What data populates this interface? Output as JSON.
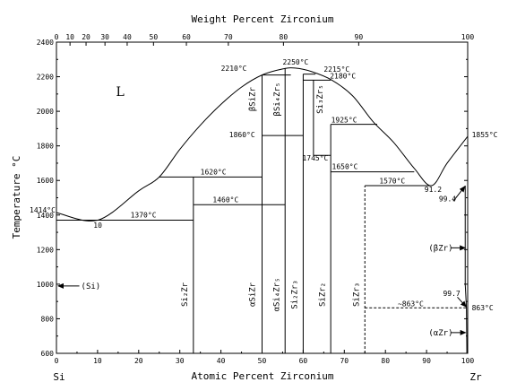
{
  "chart_data": {
    "type": "phase-diagram",
    "top_title": "Weight Percent Zirconium",
    "xlabel": "Atomic Percent Zirconium",
    "ylabel": "Temperature °C",
    "xlim": [
      0,
      100
    ],
    "ylim": [
      600,
      2400
    ],
    "x_ticks": [
      0,
      10,
      20,
      30,
      40,
      50,
      60,
      70,
      80,
      90,
      100
    ],
    "y_ticks": [
      600,
      800,
      1000,
      1200,
      1400,
      1600,
      1800,
      2000,
      2200,
      2400
    ],
    "top_ticks": [
      {
        "label": "0",
        "at": 0
      },
      {
        "label": "10",
        "at": 3.3
      },
      {
        "label": "20",
        "at": 7.2
      },
      {
        "label": "30",
        "at": 11.8
      },
      {
        "label": "40",
        "at": 17.2
      },
      {
        "label": "50",
        "at": 23.6
      },
      {
        "label": "60",
        "at": 31.6
      },
      {
        "label": "70",
        "at": 41.8
      },
      {
        "label": "80",
        "at": 55.2
      },
      {
        "label": "90",
        "at": 73.5
      },
      {
        "label": "100",
        "at": 100
      }
    ],
    "endpoints": {
      "left": "Si",
      "right": "Zr"
    },
    "liquid_label": "L",
    "liquidus": [
      [
        0,
        1414
      ],
      [
        10,
        1370
      ],
      [
        20,
        1540
      ],
      [
        25,
        1620
      ],
      [
        30,
        1780
      ],
      [
        35,
        1920
      ],
      [
        40,
        2040
      ],
      [
        45,
        2140
      ],
      [
        50,
        2210
      ],
      [
        55,
        2245
      ],
      [
        58,
        2250
      ],
      [
        62,
        2230
      ],
      [
        67,
        2180
      ],
      [
        72,
        2090
      ],
      [
        77,
        1940
      ],
      [
        82,
        1820
      ],
      [
        87,
        1670
      ],
      [
        91.2,
        1570
      ],
      [
        95,
        1700
      ],
      [
        100,
        1855
      ]
    ],
    "horizontals": [
      {
        "x": [
          0,
          33.3
        ],
        "y": 1370
      },
      {
        "x": [
          25,
          50
        ],
        "y": 1620
      },
      {
        "x": [
          33.3,
          55.6
        ],
        "y": 1460
      },
      {
        "x": [
          50,
          60
        ],
        "y": 1860
      },
      {
        "x": [
          50,
          57
        ],
        "y": 2210
      },
      {
        "x": [
          60,
          63
        ],
        "y": 2215
      },
      {
        "x": [
          60,
          66.7
        ],
        "y": 2180
      },
      {
        "x": [
          62.5,
          66.7
        ],
        "y": 1745
      },
      {
        "x": [
          66.7,
          78
        ],
        "y": 1925
      },
      {
        "x": [
          66.7,
          87
        ],
        "y": 1650
      },
      {
        "x": [
          75,
          91.2
        ],
        "y": 1570
      }
    ],
    "verticals": [
      {
        "x": 33.3,
        "y": [
          600,
          1620
        ],
        "style": "solid"
      },
      {
        "x": 50,
        "y": [
          600,
          2210
        ],
        "style": "solid"
      },
      {
        "x": 55.6,
        "y": [
          600,
          2250
        ],
        "style": "solid"
      },
      {
        "x": 60,
        "y": [
          600,
          2215
        ],
        "style": "solid"
      },
      {
        "x": 62.5,
        "y": [
          1745,
          2180
        ],
        "style": "solid"
      },
      {
        "x": 66.7,
        "y": [
          600,
          1925
        ],
        "style": "solid"
      },
      {
        "x": 75,
        "y": [
          600,
          1570
        ],
        "style": "dashed"
      }
    ],
    "solvus": [
      [
        99.4,
        1570
      ],
      [
        99.4,
        1000
      ],
      [
        99.7,
        863
      ],
      [
        99.8,
        600
      ]
    ],
    "eutectoid": {
      "x": [
        75,
        99.7
      ],
      "y": 863
    },
    "temperature_labels": [
      {
        "text": "1414°C",
        "x": -1,
        "y": 1414,
        "anchor": "start"
      },
      {
        "text": "10",
        "x": 9,
        "y": 1325,
        "anchor": "start"
      },
      {
        "text": "1370°C",
        "x": 18,
        "y": 1385,
        "anchor": "start"
      },
      {
        "text": "1620°C",
        "x": 35,
        "y": 1635,
        "anchor": "start"
      },
      {
        "text": "1460°C",
        "x": 38,
        "y": 1475,
        "anchor": "start"
      },
      {
        "text": "2210°C",
        "x": 40,
        "y": 2235,
        "anchor": "start"
      },
      {
        "text": "2250°C",
        "x": 55,
        "y": 2270,
        "anchor": "start"
      },
      {
        "text": "2215°C",
        "x": 65,
        "y": 2230,
        "anchor": "start"
      },
      {
        "text": "2180°C",
        "x": 66.5,
        "y": 2190,
        "anchor": "start"
      },
      {
        "text": "1860°C",
        "x": 42,
        "y": 1850,
        "anchor": "start"
      },
      {
        "text": "1925°C",
        "x": 66.8,
        "y": 1935,
        "anchor": "start"
      },
      {
        "text": "1745°C",
        "x": 59.8,
        "y": 1715,
        "anchor": "start"
      },
      {
        "text": "1650°C",
        "x": 67,
        "y": 1665,
        "anchor": "start"
      },
      {
        "text": "1570°C",
        "x": 78.5,
        "y": 1582,
        "anchor": "start"
      },
      {
        "text": "91.2",
        "x": 89.5,
        "y": 1535,
        "anchor": "start"
      },
      {
        "text": "99.4",
        "x": 93,
        "y": 1478,
        "anchor": "start"
      },
      {
        "text": "1855°C",
        "x": 101,
        "y": 1850,
        "anchor": "start"
      },
      {
        "text": "~863°C",
        "x": 83,
        "y": 872,
        "anchor": "start"
      },
      {
        "text": "99.7",
        "x": 94,
        "y": 933,
        "anchor": "start"
      },
      {
        "text": "863°C",
        "x": 101,
        "y": 850,
        "anchor": "start"
      }
    ],
    "compounds": [
      {
        "text": "Si₂Zr",
        "x": 31.8,
        "y": 940
      },
      {
        "text": "αSiZr",
        "x": 48.3,
        "y": 940
      },
      {
        "text": "βSiZr",
        "x": 48.3,
        "y": 2070
      },
      {
        "text": "αSi₄Zr₅",
        "x": 54.1,
        "y": 940
      },
      {
        "text": "βSi₄Zr₅",
        "x": 54.3,
        "y": 2070
      },
      {
        "text": "Si₂Zr₃",
        "x": 58.5,
        "y": 940
      },
      {
        "text": "Si₃Zr₅",
        "x": 64.7,
        "y": 2070
      },
      {
        "text": "SiZr₂",
        "x": 65.2,
        "y": 940
      },
      {
        "text": "SiZr₃",
        "x": 73.5,
        "y": 940
      }
    ],
    "side_phases": [
      {
        "text": "(Si)",
        "x": 6,
        "y": 990,
        "arrow_to_x": 0
      },
      {
        "text": "(βZr)",
        "x": 90.5,
        "y": 1210,
        "arrow_to_x": 99.6
      },
      {
        "text": "(αZr)",
        "x": 90.5,
        "y": 720,
        "arrow_to_x": 99.7
      }
    ]
  }
}
